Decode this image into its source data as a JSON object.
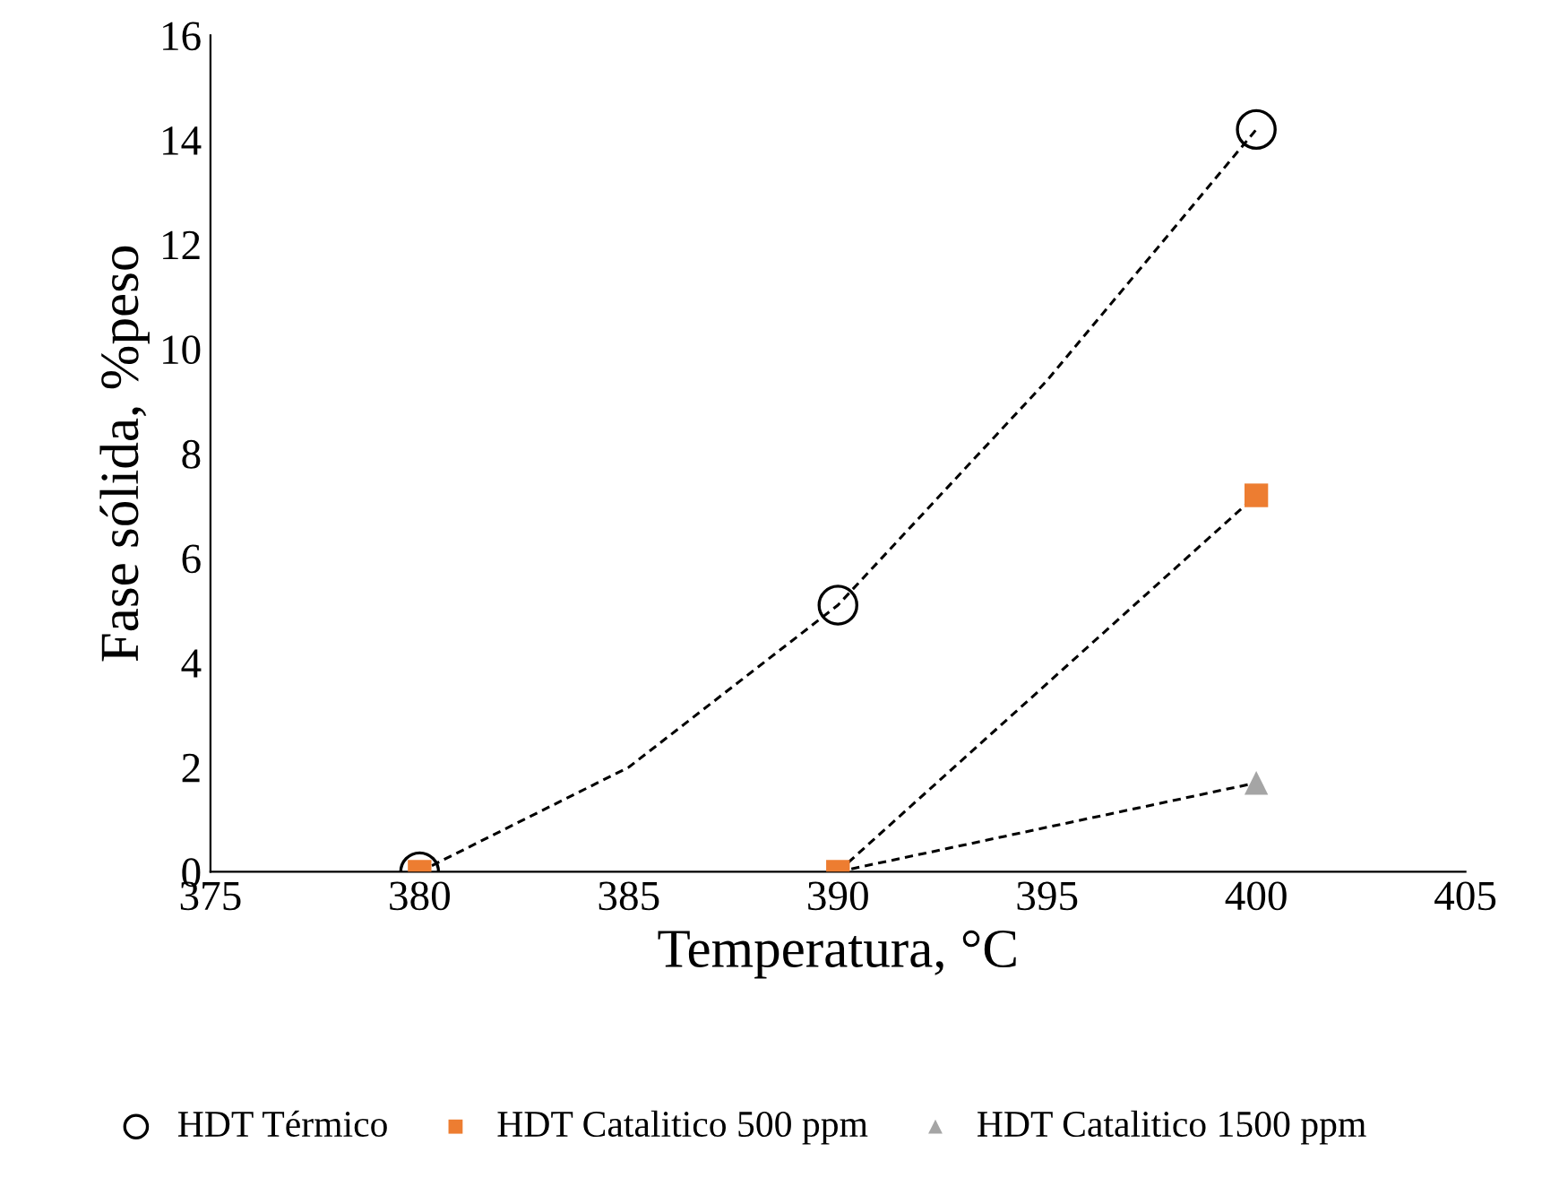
{
  "chart_data": {
    "type": "scatter",
    "xlabel": "Temperatura, °C",
    "ylabel": "Fase sólida, %peso",
    "xlim": [
      375,
      405
    ],
    "xticks": [
      375,
      380,
      385,
      390,
      395,
      400,
      405
    ],
    "ylim": [
      0,
      16
    ],
    "yticks": [
      0,
      2,
      4,
      6,
      8,
      10,
      12,
      14,
      16
    ],
    "grid": false,
    "legend": "bottom",
    "series": [
      {
        "name": "HDT Térmico",
        "color": "#000000",
        "marker": "circle",
        "x": [
          380,
          390,
          400
        ],
        "values": [
          0,
          5.1,
          14.2
        ]
      },
      {
        "name": "HDT Catalitico 500 ppm",
        "color": "#ed7d31",
        "marker": "square",
        "x": [
          380,
          390,
          400
        ],
        "values": [
          0,
          0,
          7.2
        ]
      },
      {
        "name": "HDT Catalitico 1500 ppm",
        "color": "#a5a5a5",
        "marker": "triangle",
        "x": [
          400
        ],
        "values": [
          1.7
        ]
      },
      {
        "type": "line",
        "color": "#000000",
        "line_style": "dashed",
        "x": [
          380,
          385,
          390,
          395,
          400
        ],
        "values": [
          0,
          2.0,
          5.1,
          9.4,
          14.2
        ]
      },
      {
        "type": "line",
        "color": "#000000",
        "line_style": "dashed",
        "x": [
          390,
          400
        ],
        "values": [
          0,
          7.2
        ]
      },
      {
        "type": "line",
        "color": "#000000",
        "line_style": "dashed",
        "x": [
          390,
          400
        ],
        "values": [
          0,
          1.7
        ]
      }
    ]
  }
}
